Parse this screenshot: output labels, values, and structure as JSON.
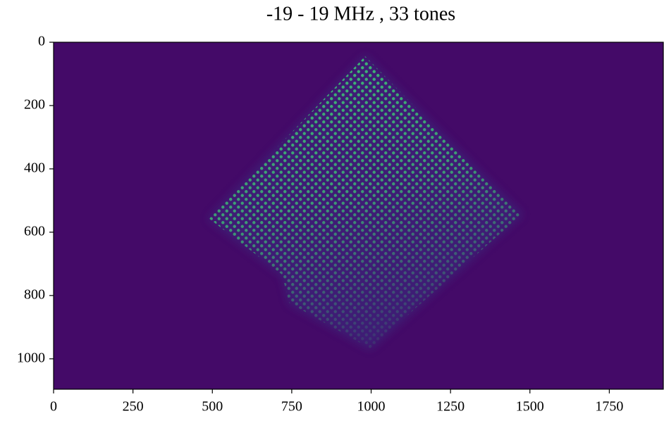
{
  "chart_data": {
    "type": "image",
    "title": "-19 - 19 MHz , 33 tones",
    "colormap": "viridis",
    "xlim": [
      0,
      1920
    ],
    "ylim": [
      1096,
      0
    ],
    "xticks": [
      0,
      250,
      500,
      750,
      1000,
      1250,
      1500,
      1750
    ],
    "yticks": [
      0,
      200,
      400,
      600,
      800,
      1000
    ]
  }
}
